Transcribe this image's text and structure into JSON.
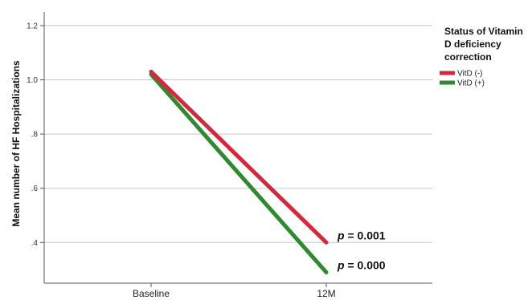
{
  "chart_data": {
    "type": "line",
    "categories": [
      "Baseline",
      "12M"
    ],
    "ylabel": "Mean number of HF Hospitalizations",
    "ylim": [
      0.25,
      1.25
    ],
    "yticks": [
      ".4",
      ".6",
      ".8",
      "1.0",
      "1.2"
    ],
    "ytick_values": [
      0.4,
      0.6,
      0.8,
      1.0,
      1.2
    ],
    "grid": true,
    "legend": {
      "title_lines": [
        "Status of Vitamin",
        "D deficiency",
        "correction"
      ],
      "placement": "right"
    },
    "series": [
      {
        "name": "VitD (-)",
        "values": [
          1.03,
          0.4
        ],
        "color": "#d4283c",
        "annotation_p": "p",
        "annotation_rest": " = 0.001"
      },
      {
        "name": "VitD (+)",
        "values": [
          1.02,
          0.29
        ],
        "color": "#2f8a2f",
        "annotation_p": "p",
        "annotation_rest": " = 0.000"
      }
    ]
  }
}
